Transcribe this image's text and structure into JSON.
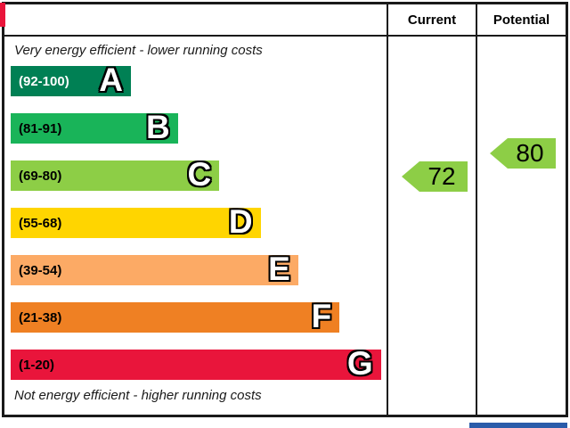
{
  "header": {
    "current_label": "Current",
    "potential_label": "Potential"
  },
  "captions": {
    "top": "Very energy efficient - lower running costs",
    "bottom": "Not energy efficient - higher running costs"
  },
  "chart_data": {
    "type": "bar",
    "title": "Energy efficiency rating chart",
    "bands": [
      {
        "letter": "A",
        "range": "(92-100)",
        "color": "#008054",
        "width_pct": 32
      },
      {
        "letter": "B",
        "range": "(81-91)",
        "color": "#19b459",
        "width_pct": 44.5
      },
      {
        "letter": "C",
        "range": "(69-80)",
        "color": "#8dce46",
        "width_pct": 55.5
      },
      {
        "letter": "D",
        "range": "(55-68)",
        "color": "#ffd500",
        "width_pct": 66.5
      },
      {
        "letter": "E",
        "range": "(39-54)",
        "color": "#fcaa65",
        "width_pct": 76.5
      },
      {
        "letter": "F",
        "range": "(21-38)",
        "color": "#ef8023",
        "width_pct": 87.5
      },
      {
        "letter": "G",
        "range": "(1-20)",
        "color": "#e9153b",
        "width_pct": 98.5
      }
    ],
    "current": {
      "value": "72",
      "band": "C",
      "color": "#8dce46"
    },
    "potential": {
      "value": "80",
      "band": "C",
      "color": "#8dce46"
    }
  },
  "decorations": {
    "blue_strip_color": "#2a5caa",
    "red_sliver_color": "#e9153b",
    "border_color": "#1a1a1a"
  }
}
